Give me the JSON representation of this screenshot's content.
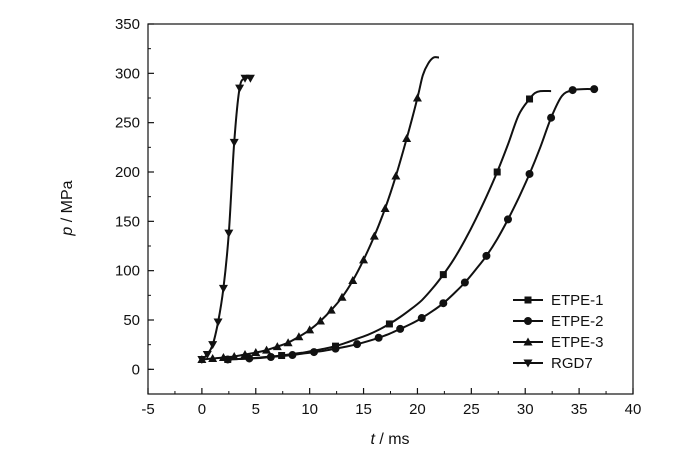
{
  "chart_data": {
    "type": "line",
    "title": "",
    "xlabel": {
      "var": "t",
      "unit": " / ms"
    },
    "ylabel": {
      "var": "p",
      "unit": " / MPa"
    },
    "xlim": [
      -5,
      40
    ],
    "ylim": [
      -25,
      350
    ],
    "xticks": [
      -5,
      0,
      5,
      10,
      15,
      20,
      25,
      30,
      35,
      40
    ],
    "yticks": [
      0,
      50,
      100,
      150,
      200,
      250,
      300,
      350
    ],
    "grid": false,
    "legend_position": "bottom-right",
    "color": "#111111",
    "series": [
      {
        "name": "ETPE-1",
        "marker": "square",
        "points": [
          [
            0,
            10
          ],
          [
            1,
            10.5
          ],
          [
            2,
            11
          ],
          [
            3,
            12
          ],
          [
            4,
            13
          ],
          [
            5,
            14
          ],
          [
            6,
            15.5
          ],
          [
            7,
            17
          ],
          [
            8,
            19
          ],
          [
            9,
            21
          ],
          [
            10,
            23.5
          ],
          [
            11,
            27
          ],
          [
            12,
            31
          ],
          [
            13,
            35
          ],
          [
            14,
            40
          ],
          [
            15,
            46
          ],
          [
            16,
            53
          ],
          [
            17,
            61
          ],
          [
            18,
            70
          ],
          [
            19,
            82
          ],
          [
            20,
            96
          ],
          [
            21,
            112
          ],
          [
            22,
            131
          ],
          [
            23,
            152
          ],
          [
            24,
            175
          ],
          [
            25,
            200
          ],
          [
            26,
            228
          ],
          [
            27,
            258
          ],
          [
            28,
            274
          ],
          [
            28.5,
            280
          ],
          [
            29,
            282
          ],
          [
            30,
            282
          ]
        ],
        "markers": [
          [
            0,
            10
          ],
          [
            5,
            14
          ],
          [
            10,
            23.5
          ],
          [
            15,
            46
          ],
          [
            20,
            96
          ],
          [
            25,
            200
          ],
          [
            28,
            274
          ]
        ],
        "offset": 2.4
      },
      {
        "name": "ETPE-2",
        "marker": "circle",
        "points": [
          [
            0,
            10
          ],
          [
            1,
            10.5
          ],
          [
            2,
            11
          ],
          [
            3,
            11.5
          ],
          [
            4,
            12.5
          ],
          [
            5,
            13.5
          ],
          [
            6,
            14.5
          ],
          [
            7,
            16
          ],
          [
            8,
            17.5
          ],
          [
            9,
            19
          ],
          [
            10,
            21
          ],
          [
            11,
            23
          ],
          [
            12,
            25.5
          ],
          [
            13,
            28.5
          ],
          [
            14,
            32
          ],
          [
            15,
            36
          ],
          [
            16,
            41
          ],
          [
            17,
            46
          ],
          [
            18,
            52
          ],
          [
            19,
            59
          ],
          [
            20,
            67
          ],
          [
            21,
            77
          ],
          [
            22,
            88
          ],
          [
            23,
            101
          ],
          [
            24,
            115
          ],
          [
            25,
            132
          ],
          [
            26,
            152
          ],
          [
            27,
            174
          ],
          [
            28,
            198
          ],
          [
            29,
            225
          ],
          [
            30,
            255
          ],
          [
            31,
            277
          ],
          [
            32,
            283
          ],
          [
            33,
            284
          ],
          [
            34,
            284
          ]
        ],
        "markers": [
          [
            0,
            10
          ],
          [
            2,
            11
          ],
          [
            4,
            12.5
          ],
          [
            6,
            14.5
          ],
          [
            8,
            17.5
          ],
          [
            10,
            21
          ],
          [
            12,
            25.5
          ],
          [
            14,
            32
          ],
          [
            16,
            41
          ],
          [
            18,
            52
          ],
          [
            20,
            67
          ],
          [
            22,
            88
          ],
          [
            24,
            115
          ],
          [
            26,
            152
          ],
          [
            28,
            198
          ],
          [
            30,
            255
          ],
          [
            32,
            283
          ],
          [
            34,
            284
          ]
        ],
        "offset": 2.4
      },
      {
        "name": "ETPE-3",
        "marker": "triangle-up",
        "points": [
          [
            0,
            10
          ],
          [
            1,
            11
          ],
          [
            2,
            12
          ],
          [
            3,
            13
          ],
          [
            4,
            15
          ],
          [
            5,
            17
          ],
          [
            6,
            19.5
          ],
          [
            7,
            23
          ],
          [
            8,
            27
          ],
          [
            9,
            33
          ],
          [
            10,
            40
          ],
          [
            11,
            49
          ],
          [
            12,
            60
          ],
          [
            13,
            73
          ],
          [
            14,
            90
          ],
          [
            15,
            111
          ],
          [
            16,
            135
          ],
          [
            17,
            163
          ],
          [
            18,
            196
          ],
          [
            19,
            234
          ],
          [
            20,
            275
          ],
          [
            20.5,
            298
          ],
          [
            21,
            310
          ],
          [
            21.5,
            316
          ],
          [
            22,
            316
          ]
        ],
        "markers": [
          [
            0,
            10
          ],
          [
            1,
            11
          ],
          [
            2,
            12
          ],
          [
            3,
            13
          ],
          [
            4,
            15
          ],
          [
            5,
            17
          ],
          [
            6,
            19.5
          ],
          [
            7,
            23
          ],
          [
            8,
            27
          ],
          [
            9,
            33
          ],
          [
            10,
            40
          ],
          [
            11,
            49
          ],
          [
            12,
            60
          ],
          [
            13,
            73
          ],
          [
            14,
            90
          ],
          [
            15,
            111
          ],
          [
            16,
            135
          ],
          [
            17,
            163
          ],
          [
            18,
            196
          ],
          [
            19,
            234
          ],
          [
            20,
            275
          ]
        ],
        "offset": 0
      },
      {
        "name": "RGD7",
        "marker": "triangle-down",
        "points": [
          [
            0,
            10
          ],
          [
            0.5,
            15
          ],
          [
            1,
            25
          ],
          [
            1.5,
            48
          ],
          [
            2,
            82
          ],
          [
            2.5,
            138
          ],
          [
            3,
            230
          ],
          [
            3.5,
            285
          ],
          [
            4,
            295
          ],
          [
            4.5,
            295
          ]
        ],
        "markers": [
          [
            0,
            10
          ],
          [
            0.5,
            15
          ],
          [
            1,
            25
          ],
          [
            1.5,
            48
          ],
          [
            2,
            82
          ],
          [
            2.5,
            138
          ],
          [
            3,
            230
          ],
          [
            3.5,
            285
          ],
          [
            4,
            295
          ],
          [
            4.5,
            295
          ]
        ],
        "offset": 0
      }
    ]
  }
}
